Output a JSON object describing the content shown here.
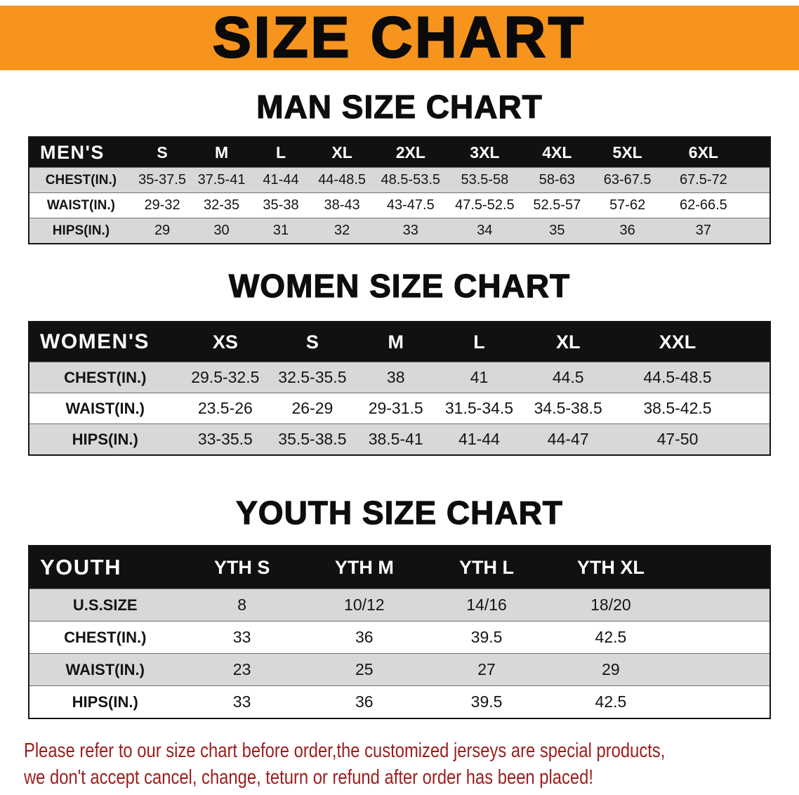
{
  "banner": {
    "title": "SIZE CHART"
  },
  "colors": {
    "banner_bg": "#f7941d",
    "header_bg": "#111111",
    "row_alt": "#d8d8d8",
    "footer_text": "#9e1c1c"
  },
  "sections": [
    {
      "id": "men",
      "heading": "MAN SIZE CHART"
    },
    {
      "id": "women",
      "heading": "WOMEN SIZE CHART"
    },
    {
      "id": "youth",
      "heading": "YOUTH SIZE CHART"
    }
  ],
  "chart_data": [
    {
      "type": "table",
      "id": "men",
      "title": "MAN SIZE CHART",
      "columns": [
        "MEN'S",
        "S",
        "M",
        "L",
        "XL",
        "2XL",
        "3XL",
        "4XL",
        "5XL",
        "6XL"
      ],
      "rows": [
        [
          "CHEST(IN.)",
          "35-37.5",
          "37.5-41",
          "41-44",
          "44-48.5",
          "48.5-53.5",
          "53.5-58",
          "58-63",
          "63-67.5",
          "67.5-72"
        ],
        [
          "WAIST(IN.)",
          "29-32",
          "32-35",
          "35-38",
          "38-43",
          "43-47.5",
          "47.5-52.5",
          "52.5-57",
          "57-62",
          "62-66.5"
        ],
        [
          "HIPS(IN.)",
          "29",
          "30",
          "31",
          "32",
          "33",
          "34",
          "35",
          "36",
          "37"
        ]
      ]
    },
    {
      "type": "table",
      "id": "women",
      "title": "WOMEN SIZE CHART",
      "columns": [
        "WOMEN'S",
        "XS",
        "S",
        "M",
        "L",
        "XL",
        "XXL"
      ],
      "rows": [
        [
          "CHEST(IN.)",
          "29.5-32.5",
          "32.5-35.5",
          "38",
          "41",
          "44.5",
          "44.5-48.5"
        ],
        [
          "WAIST(IN.)",
          "23.5-26",
          "26-29",
          "29-31.5",
          "31.5-34.5",
          "34.5-38.5",
          "38.5-42.5"
        ],
        [
          "HIPS(IN.)",
          "33-35.5",
          "35.5-38.5",
          "38.5-41",
          "41-44",
          "44-47",
          "47-50"
        ]
      ]
    },
    {
      "type": "table",
      "id": "youth",
      "title": "YOUTH SIZE CHART",
      "columns": [
        "YOUTH",
        "YTH S",
        "YTH M",
        "YTH L",
        "YTH XL"
      ],
      "rows": [
        [
          "U.S.SIZE",
          "8",
          "10/12",
          "14/16",
          "18/20"
        ],
        [
          "CHEST(IN.)",
          "33",
          "36",
          "39.5",
          "42.5"
        ],
        [
          "WAIST(IN.)",
          "23",
          "25",
          "27",
          "29"
        ],
        [
          "HIPS(IN.)",
          "33",
          "36",
          "39.5",
          "42.5"
        ]
      ]
    }
  ],
  "footer": {
    "lines": [
      "Please refer to our size chart before order,the customized jerseys are special products,",
      "we don't accept cancel, change, teturn or refund after order has been placed!"
    ]
  }
}
